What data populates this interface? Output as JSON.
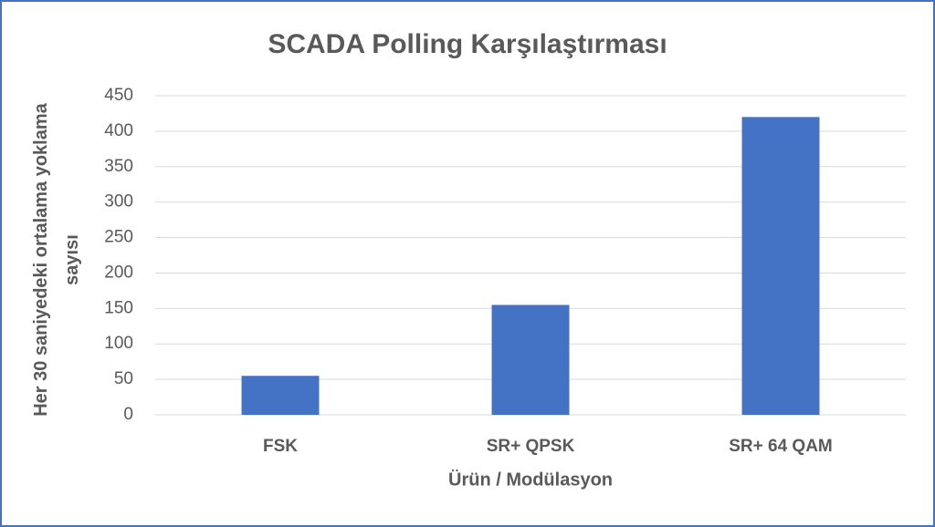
{
  "chart_data": {
    "type": "bar",
    "title": "SCADA Polling Karşılaştırması",
    "x_label": "Ürün / Modülasyon",
    "y_label": "Her 30 saniyedeki ortalama yoklama sayısı",
    "categories": [
      "FSK",
      "SR+ QPSK",
      "SR+ 64 QAM"
    ],
    "values": [
      55,
      155,
      420
    ],
    "color": "#4472c4",
    "ylim": [
      0,
      450
    ],
    "yticks": [
      0,
      50,
      100,
      150,
      200,
      250,
      300,
      350,
      400,
      450
    ],
    "grid": true
  }
}
